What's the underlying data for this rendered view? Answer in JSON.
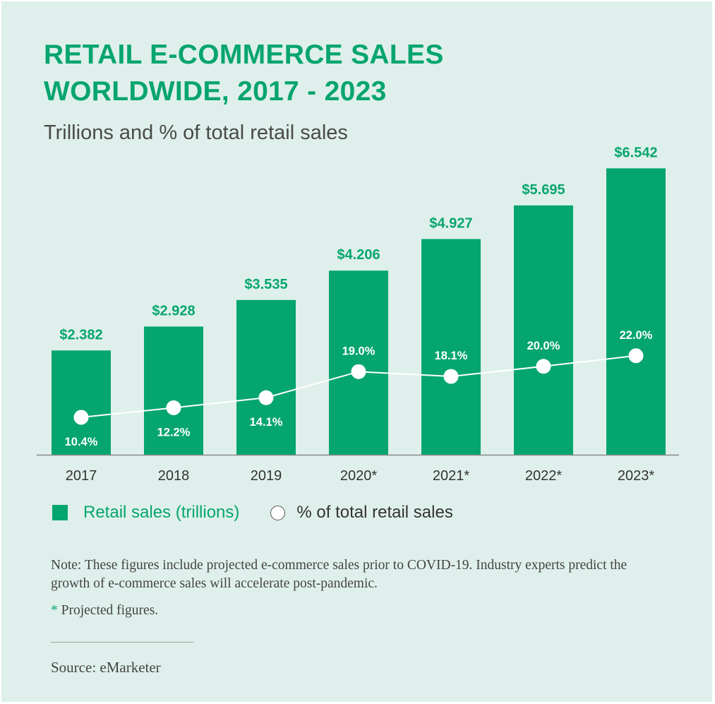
{
  "title_line1": "RETAIL E-COMMERCE SALES",
  "title_line2": "WORLDWIDE, 2017 - 2023",
  "subtitle": "Trillions and % of total retail sales",
  "colors": {
    "bar": "#05a56f",
    "accent_text": "#07a56e",
    "line": "#ffffff",
    "background": "#dff0ec"
  },
  "chart_data": {
    "type": "bar",
    "categories": [
      "2017",
      "2018",
      "2019",
      "2020*",
      "2021*",
      "2022*",
      "2023*"
    ],
    "series": [
      {
        "name": "Retail sales (trillions)",
        "type": "bar",
        "values": [
          2.382,
          2.928,
          3.535,
          4.206,
          4.927,
          5.695,
          6.542
        ],
        "labels": [
          "$2.382",
          "$2.928",
          "$3.535",
          "$4.206",
          "$4.927",
          "$5.695",
          "$6.542"
        ]
      },
      {
        "name": "% of total retail sales",
        "type": "line",
        "values": [
          10.4,
          12.2,
          14.1,
          19.0,
          18.1,
          20.0,
          22.0
        ],
        "labels": [
          "10.4%",
          "12.2%",
          "14.1%",
          "19.0%",
          "18.1%",
          "20.0%",
          "22.0%"
        ]
      }
    ],
    "legend_position": "bottom-left",
    "grid": false
  },
  "legend": {
    "bar_label": "Retail sales (trillions)",
    "line_label": "% of total retail sales"
  },
  "note": "Note: These figures include projected e-commerce sales prior to COVID-19. Industry experts predict the growth of e-commerce sales will accelerate post-pandemic.",
  "projected_star": "*",
  "projected_text": " Projected figures.",
  "source": "Source: eMarketer"
}
